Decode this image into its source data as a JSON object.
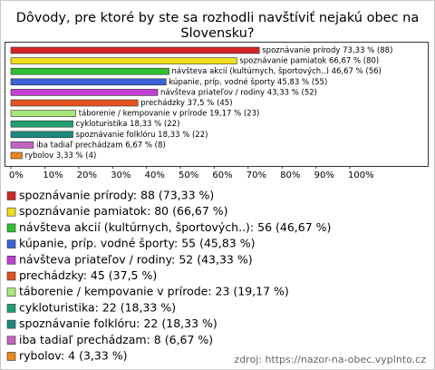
{
  "chart_data": {
    "type": "bar",
    "orientation": "horizontal",
    "title": [
      "Dôvody, pre ktoré by ste sa rozhodli navštíviť nejakú obec na",
      "Slovensku?"
    ],
    "values": [
      73.33,
      66.67,
      46.67,
      45.83,
      43.33,
      37.5,
      19.17,
      18.33,
      18.33,
      6.67,
      3.33
    ],
    "value_labels": [
      "spoznávanie prírody 73,33 % (88)",
      "spoznávanie pamiatok 66,67 % (80)",
      "návšteva akcií (kultúrnych, športových..) 46,67 % (56)",
      "kúpanie, príp. vodné športy 45,83 % (55)",
      "návšteva priateľov / rodiny 43,33 % (52)",
      "prechádzky 37,5 % (45)",
      "táborenie / kempovanie v prírode 19,17 % (23)",
      "cykloturistika 18,33 % (22)",
      "spoznávanie folklóru 18,33 % (22)",
      "iba tadiaľ prechádzam 6,67 % (8)",
      "rybolov 3,33 % (4)"
    ],
    "legend_labels": [
      "spoznávanie prírody: 88 (73,33 %)",
      "spoznávanie pamiatok: 80 (66,67 %)",
      "návšteva akcií (kultúrnych, športových..): 56 (46,67 %)",
      "kúpanie, príp. vodné športy: 55 (45,83 %)",
      "návšteva priateľov / rodiny: 52 (43,33 %)",
      "prechádzky: 45 (37,5 %)",
      "táborenie / kempovanie v prírode: 23 (19,17 %)",
      "cykloturistika: 22 (18,33 %)",
      "spoznávanie folklóru: 22 (18,33 %)",
      "iba tadiaľ prechádzam: 8 (6,67 %)",
      "rybolov: 4 (3,33 %)"
    ],
    "colors": [
      "#d42323",
      "#f2df1c",
      "#2fbf2f",
      "#3b62d6",
      "#c23fd4",
      "#e4521f",
      "#a8e87a",
      "#1f9e6e",
      "#1b8a7c",
      "#c263c2",
      "#e8871a"
    ],
    "xlim": [
      0,
      100
    ],
    "xticks": [
      {
        "value": 0,
        "label": "0%"
      },
      {
        "value": 10,
        "label": "10%"
      },
      {
        "value": 20,
        "label": "20%"
      },
      {
        "value": 30,
        "label": "30%"
      },
      {
        "value": 40,
        "label": "40%"
      },
      {
        "value": 50,
        "label": "50%"
      },
      {
        "value": 60,
        "label": "60%"
      },
      {
        "value": 70,
        "label": "70%"
      },
      {
        "value": 80,
        "label": "80%"
      },
      {
        "value": 90,
        "label": "90%"
      },
      {
        "value": 100,
        "label": "100%"
      }
    ],
    "source": "zdroj: https://nazor-na-obec.vyplnto.cz"
  }
}
